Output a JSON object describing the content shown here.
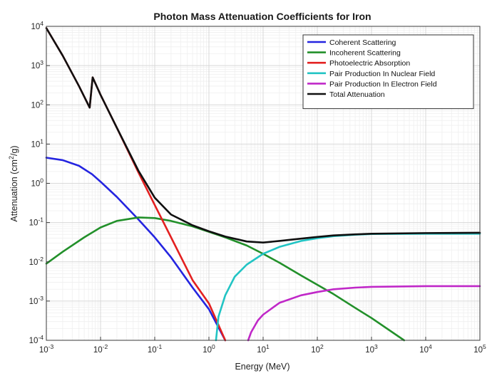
{
  "chart_data": {
    "type": "line",
    "title": "Photon Mass Attenuation Coefficients for Iron",
    "xlabel": "Energy (MeV)",
    "ylabel_prefix": "Attenuation (cm",
    "ylabel_sup": "2",
    "ylabel_suffix": "/g)",
    "x_scale": "log",
    "y_scale": "log",
    "xlim": [
      0.001,
      100000
    ],
    "ylim": [
      0.0001,
      10000
    ],
    "x_ticks": [
      {
        "base": "10",
        "exp": "-3",
        "value": 0.001
      },
      {
        "base": "10",
        "exp": "-2",
        "value": 0.01
      },
      {
        "base": "10",
        "exp": "-1",
        "value": 0.1
      },
      {
        "base": "10",
        "exp": "0",
        "value": 1
      },
      {
        "base": "10",
        "exp": "1",
        "value": 10
      },
      {
        "base": "10",
        "exp": "2",
        "value": 100
      },
      {
        "base": "10",
        "exp": "3",
        "value": 1000
      },
      {
        "base": "10",
        "exp": "4",
        "value": 10000
      },
      {
        "base": "10",
        "exp": "5",
        "value": 100000
      }
    ],
    "y_ticks": [
      {
        "base": "10",
        "exp": "-4",
        "value": 0.0001
      },
      {
        "base": "10",
        "exp": "-3",
        "value": 0.001
      },
      {
        "base": "10",
        "exp": "-2",
        "value": 0.01
      },
      {
        "base": "10",
        "exp": "-1",
        "value": 0.1
      },
      {
        "base": "10",
        "exp": "0",
        "value": 1
      },
      {
        "base": "10",
        "exp": "1",
        "value": 10
      },
      {
        "base": "10",
        "exp": "2",
        "value": 100
      },
      {
        "base": "10",
        "exp": "3",
        "value": 1000
      },
      {
        "base": "10",
        "exp": "4",
        "value": 10000
      }
    ],
    "grid": true,
    "legend_position": "top-right",
    "series": [
      {
        "name": "Coherent Scattering",
        "color": "#2424e0",
        "points": [
          [
            0.001,
            4.5
          ],
          [
            0.002,
            3.9
          ],
          [
            0.004,
            2.8
          ],
          [
            0.007,
            1.7
          ],
          [
            0.01,
            1.1
          ],
          [
            0.02,
            0.45
          ],
          [
            0.05,
            0.12
          ],
          [
            0.1,
            0.042
          ],
          [
            0.2,
            0.013
          ],
          [
            0.5,
            0.0022
          ],
          [
            1,
            0.00062
          ],
          [
            2,
            0.0001
          ]
        ]
      },
      {
        "name": "Incoherent Scattering",
        "color": "#22902a",
        "points": [
          [
            0.001,
            0.009
          ],
          [
            0.002,
            0.018
          ],
          [
            0.005,
            0.042
          ],
          [
            0.01,
            0.075
          ],
          [
            0.02,
            0.11
          ],
          [
            0.05,
            0.135
          ],
          [
            0.1,
            0.13
          ],
          [
            0.2,
            0.11
          ],
          [
            0.5,
            0.08
          ],
          [
            1,
            0.058
          ],
          [
            2,
            0.042
          ],
          [
            5,
            0.026
          ],
          [
            10,
            0.016
          ],
          [
            20,
            0.0095
          ],
          [
            50,
            0.0045
          ],
          [
            100,
            0.0026
          ],
          [
            200,
            0.0015
          ],
          [
            500,
            0.00067
          ],
          [
            1000,
            0.00037
          ],
          [
            4000,
            0.0001
          ]
        ]
      },
      {
        "name": "Photoelectric Absorption",
        "color": "#e32020",
        "points": [
          [
            0.001,
            9000
          ],
          [
            0.002,
            1800
          ],
          [
            0.004,
            300
          ],
          [
            0.0063,
            85
          ],
          [
            0.00715,
            500
          ],
          [
            0.01,
            180
          ],
          [
            0.02,
            26
          ],
          [
            0.05,
            1.9
          ],
          [
            0.1,
            0.28
          ],
          [
            0.2,
            0.042
          ],
          [
            0.5,
            0.0034
          ],
          [
            1,
            0.00087
          ],
          [
            2,
            0.0001
          ]
        ]
      },
      {
        "name": "Pair Production In Nuclear Field",
        "color": "#22c4c4",
        "points": [
          [
            1.35,
            0.0001
          ],
          [
            1.5,
            0.0004
          ],
          [
            2,
            0.0014
          ],
          [
            3,
            0.0042
          ],
          [
            5,
            0.0085
          ],
          [
            10,
            0.016
          ],
          [
            20,
            0.024
          ],
          [
            50,
            0.034
          ],
          [
            100,
            0.04
          ],
          [
            200,
            0.045
          ],
          [
            500,
            0.049
          ],
          [
            1000,
            0.051
          ],
          [
            10000,
            0.052
          ],
          [
            100000,
            0.052
          ]
        ]
      },
      {
        "name": "Pair Production In Electron Field",
        "color": "#c028c8",
        "points": [
          [
            5.3,
            0.0001
          ],
          [
            6,
            0.00016
          ],
          [
            8,
            0.00032
          ],
          [
            10,
            0.00045
          ],
          [
            20,
            0.0009
          ],
          [
            50,
            0.0014
          ],
          [
            100,
            0.0017
          ],
          [
            200,
            0.002
          ],
          [
            500,
            0.0022
          ],
          [
            1000,
            0.0023
          ],
          [
            10000,
            0.0024
          ],
          [
            100000,
            0.0024
          ]
        ]
      },
      {
        "name": "Total Attenuation",
        "color": "#101010",
        "points": [
          [
            0.001,
            9000
          ],
          [
            0.002,
            1800
          ],
          [
            0.004,
            300
          ],
          [
            0.0063,
            85
          ],
          [
            0.00715,
            500
          ],
          [
            0.01,
            180
          ],
          [
            0.02,
            26
          ],
          [
            0.05,
            2.1
          ],
          [
            0.1,
            0.43
          ],
          [
            0.2,
            0.16
          ],
          [
            0.5,
            0.085
          ],
          [
            1,
            0.06
          ],
          [
            2,
            0.044
          ],
          [
            5,
            0.033
          ],
          [
            10,
            0.031
          ],
          [
            20,
            0.034
          ],
          [
            50,
            0.039
          ],
          [
            100,
            0.043
          ],
          [
            200,
            0.047
          ],
          [
            500,
            0.05
          ],
          [
            1000,
            0.052
          ],
          [
            10000,
            0.054
          ],
          [
            100000,
            0.055
          ]
        ]
      }
    ]
  }
}
